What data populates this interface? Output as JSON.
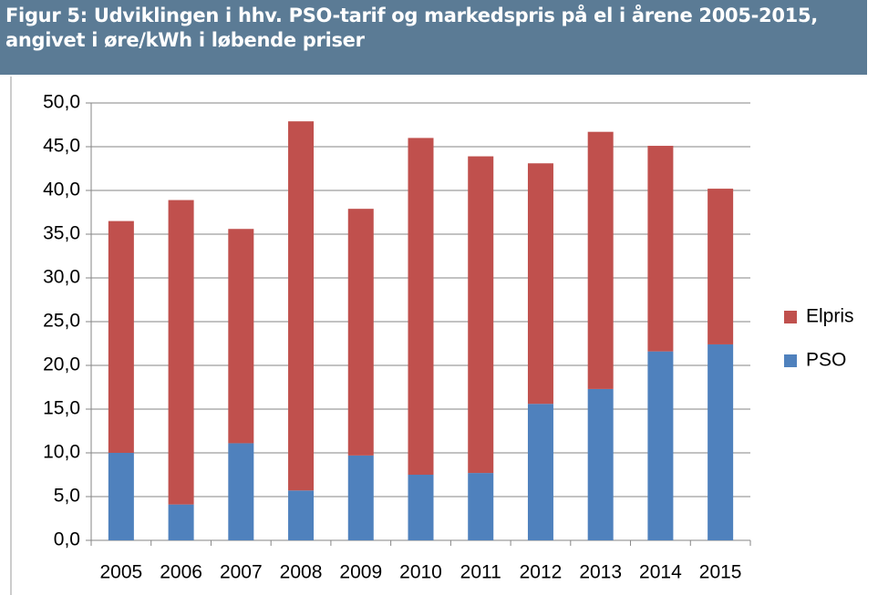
{
  "chart_data": {
    "type": "stacked_bar",
    "title": "Figur 5: Udviklingen i hhv. PSO-tarif og markedspris på el i årene 2005-2015, angivet i øre/kWh i løbende priser",
    "categories": [
      "2005",
      "2006",
      "2007",
      "2008",
      "2009",
      "2010",
      "2011",
      "2012",
      "2013",
      "2014",
      "2015"
    ],
    "series": [
      {
        "name": "PSO",
        "color": "#4f81bd",
        "values": [
          10.0,
          4.1,
          11.1,
          5.7,
          9.7,
          7.5,
          7.7,
          15.6,
          17.3,
          21.6,
          22.4
        ]
      },
      {
        "name": "Elpris",
        "color": "#c0504d",
        "values": [
          26.5,
          34.8,
          24.5,
          42.2,
          28.2,
          38.5,
          36.2,
          27.5,
          29.4,
          23.5,
          17.8
        ]
      }
    ],
    "ylim": [
      0,
      50
    ],
    "yticks": [
      {
        "value": 0,
        "label": "0,0"
      },
      {
        "value": 5,
        "label": "5,0"
      },
      {
        "value": 10,
        "label": "10,0"
      },
      {
        "value": 15,
        "label": "15,0"
      },
      {
        "value": 20,
        "label": "20,0"
      },
      {
        "value": 25,
        "label": "25,0"
      },
      {
        "value": 30,
        "label": "30,0"
      },
      {
        "value": 35,
        "label": "35,0"
      },
      {
        "value": 40,
        "label": "40,0"
      },
      {
        "value": 45,
        "label": "45,0"
      },
      {
        "value": 50,
        "label": "50,0"
      }
    ],
    "grid": true,
    "legend": "right"
  }
}
